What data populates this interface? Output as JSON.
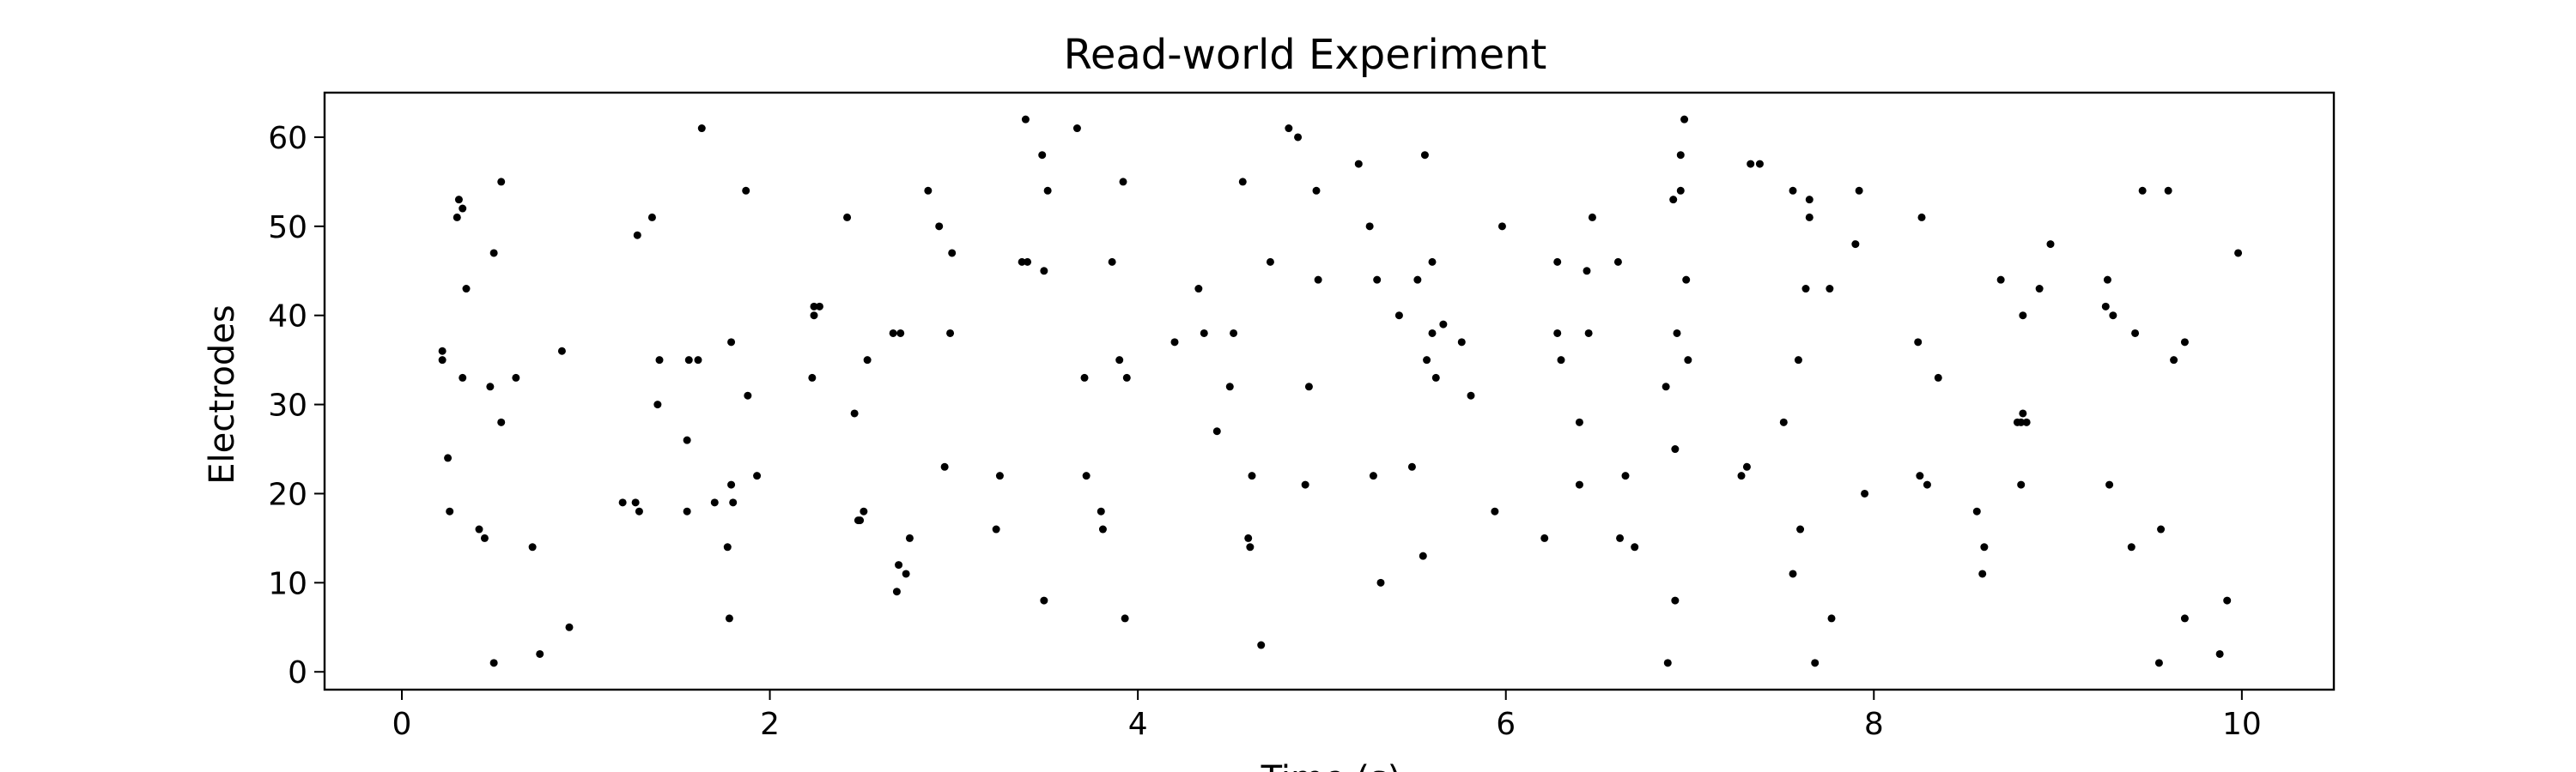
{
  "chart_data": {
    "type": "scatter",
    "title": "Read-world Experiment",
    "xlabel": "Time (s)",
    "ylabel": "Electrodes",
    "xlim": [
      -0.42,
      10.5
    ],
    "ylim": [
      -2,
      65
    ],
    "xticks": [
      0,
      2,
      4,
      6,
      8,
      10
    ],
    "yticks": [
      0,
      10,
      20,
      30,
      40,
      50,
      60
    ],
    "grid": false,
    "marker_color": "#000000",
    "points": [
      [
        0.22,
        36
      ],
      [
        0.22,
        35
      ],
      [
        0.25,
        24
      ],
      [
        0.26,
        18
      ],
      [
        0.3,
        51
      ],
      [
        0.31,
        53
      ],
      [
        0.33,
        52
      ],
      [
        0.33,
        33
      ],
      [
        0.35,
        43
      ],
      [
        0.42,
        16
      ],
      [
        0.45,
        15
      ],
      [
        0.48,
        32
      ],
      [
        0.5,
        47
      ],
      [
        0.5,
        1
      ],
      [
        0.54,
        55
      ],
      [
        0.54,
        28
      ],
      [
        0.62,
        33
      ],
      [
        0.71,
        14
      ],
      [
        0.75,
        2
      ],
      [
        0.87,
        36
      ],
      [
        0.91,
        5
      ],
      [
        1.2,
        19
      ],
      [
        1.27,
        19
      ],
      [
        1.28,
        49
      ],
      [
        1.29,
        18
      ],
      [
        1.36,
        51
      ],
      [
        1.39,
        30
      ],
      [
        1.4,
        35
      ],
      [
        1.55,
        26
      ],
      [
        1.56,
        35
      ],
      [
        1.55,
        18
      ],
      [
        1.61,
        35
      ],
      [
        1.63,
        61
      ],
      [
        1.7,
        19
      ],
      [
        1.77,
        14
      ],
      [
        1.78,
        6
      ],
      [
        1.79,
        21
      ],
      [
        1.79,
        37
      ],
      [
        1.8,
        19
      ],
      [
        1.87,
        54
      ],
      [
        1.88,
        31
      ],
      [
        1.93,
        22
      ],
      [
        2.23,
        33
      ],
      [
        2.24,
        41
      ],
      [
        2.24,
        40
      ],
      [
        2.27,
        41
      ],
      [
        2.42,
        51
      ],
      [
        2.46,
        29
      ],
      [
        2.48,
        17
      ],
      [
        2.49,
        17
      ],
      [
        2.51,
        18
      ],
      [
        2.53,
        35
      ],
      [
        2.67,
        38
      ],
      [
        2.69,
        9
      ],
      [
        2.7,
        12
      ],
      [
        2.71,
        38
      ],
      [
        2.74,
        11
      ],
      [
        2.76,
        15
      ],
      [
        2.86,
        54
      ],
      [
        2.92,
        50
      ],
      [
        2.95,
        23
      ],
      [
        2.98,
        38
      ],
      [
        2.99,
        47
      ],
      [
        3.23,
        16
      ],
      [
        3.25,
        22
      ],
      [
        3.37,
        46
      ],
      [
        3.39,
        62
      ],
      [
        3.4,
        46
      ],
      [
        3.48,
        58
      ],
      [
        3.49,
        8
      ],
      [
        3.49,
        45
      ],
      [
        3.51,
        54
      ],
      [
        3.67,
        61
      ],
      [
        3.71,
        33
      ],
      [
        3.72,
        22
      ],
      [
        3.8,
        18
      ],
      [
        3.81,
        16
      ],
      [
        3.86,
        46
      ],
      [
        3.9,
        35
      ],
      [
        3.92,
        55
      ],
      [
        3.93,
        6
      ],
      [
        3.94,
        33
      ],
      [
        4.2,
        37
      ],
      [
        4.33,
        43
      ],
      [
        4.36,
        38
      ],
      [
        4.43,
        27
      ],
      [
        4.5,
        32
      ],
      [
        4.52,
        38
      ],
      [
        4.57,
        55
      ],
      [
        4.6,
        15
      ],
      [
        4.61,
        14
      ],
      [
        4.62,
        22
      ],
      [
        4.67,
        3
      ],
      [
        4.72,
        46
      ],
      [
        4.82,
        61
      ],
      [
        4.87,
        60
      ],
      [
        4.91,
        21
      ],
      [
        4.93,
        32
      ],
      [
        4.97,
        54
      ],
      [
        4.98,
        44
      ],
      [
        5.2,
        57
      ],
      [
        5.26,
        50
      ],
      [
        5.28,
        22
      ],
      [
        5.3,
        44
      ],
      [
        5.32,
        10
      ],
      [
        5.42,
        40
      ],
      [
        5.49,
        23
      ],
      [
        5.52,
        44
      ],
      [
        5.56,
        58
      ],
      [
        5.55,
        13
      ],
      [
        5.57,
        35
      ],
      [
        5.6,
        46
      ],
      [
        5.6,
        38
      ],
      [
        5.62,
        33
      ],
      [
        5.66,
        39
      ],
      [
        5.76,
        37
      ],
      [
        5.81,
        31
      ],
      [
        5.94,
        18
      ],
      [
        5.98,
        50
      ],
      [
        6.21,
        15
      ],
      [
        6.28,
        46
      ],
      [
        6.28,
        38
      ],
      [
        6.3,
        35
      ],
      [
        6.4,
        28
      ],
      [
        6.4,
        21
      ],
      [
        6.44,
        45
      ],
      [
        6.45,
        38
      ],
      [
        6.47,
        51
      ],
      [
        6.61,
        46
      ],
      [
        6.62,
        15
      ],
      [
        6.65,
        22
      ],
      [
        6.7,
        14
      ],
      [
        6.87,
        32
      ],
      [
        6.88,
        1
      ],
      [
        6.91,
        53
      ],
      [
        6.92,
        25
      ],
      [
        6.92,
        8
      ],
      [
        6.93,
        38
      ],
      [
        6.95,
        54
      ],
      [
        6.95,
        58
      ],
      [
        6.97,
        62
      ],
      [
        6.98,
        44
      ],
      [
        6.99,
        35
      ],
      [
        7.28,
        22
      ],
      [
        7.31,
        23
      ],
      [
        7.33,
        57
      ],
      [
        7.38,
        57
      ],
      [
        7.51,
        28
      ],
      [
        7.56,
        54
      ],
      [
        7.56,
        11
      ],
      [
        7.59,
        35
      ],
      [
        7.6,
        16
      ],
      [
        7.63,
        43
      ],
      [
        7.65,
        53
      ],
      [
        7.65,
        51
      ],
      [
        7.68,
        1
      ],
      [
        7.76,
        43
      ],
      [
        7.77,
        6
      ],
      [
        7.9,
        48
      ],
      [
        7.92,
        54
      ],
      [
        7.95,
        20
      ],
      [
        8.24,
        37
      ],
      [
        8.25,
        22
      ],
      [
        8.26,
        51
      ],
      [
        8.29,
        21
      ],
      [
        8.35,
        33
      ],
      [
        8.56,
        18
      ],
      [
        8.59,
        11
      ],
      [
        8.6,
        14
      ],
      [
        8.69,
        44
      ],
      [
        8.78,
        28
      ],
      [
        8.8,
        28
      ],
      [
        8.8,
        21
      ],
      [
        8.81,
        40
      ],
      [
        8.81,
        29
      ],
      [
        8.83,
        28
      ],
      [
        8.9,
        43
      ],
      [
        8.96,
        48
      ],
      [
        9.26,
        41
      ],
      [
        9.27,
        44
      ],
      [
        9.28,
        21
      ],
      [
        9.3,
        40
      ],
      [
        9.4,
        14
      ],
      [
        9.42,
        38
      ],
      [
        9.46,
        54
      ],
      [
        9.55,
        1
      ],
      [
        9.56,
        16
      ],
      [
        9.6,
        54
      ],
      [
        9.63,
        35
      ],
      [
        9.69,
        37
      ],
      [
        9.69,
        6
      ],
      [
        9.88,
        2
      ],
      [
        9.92,
        8
      ],
      [
        9.98,
        47
      ]
    ]
  }
}
